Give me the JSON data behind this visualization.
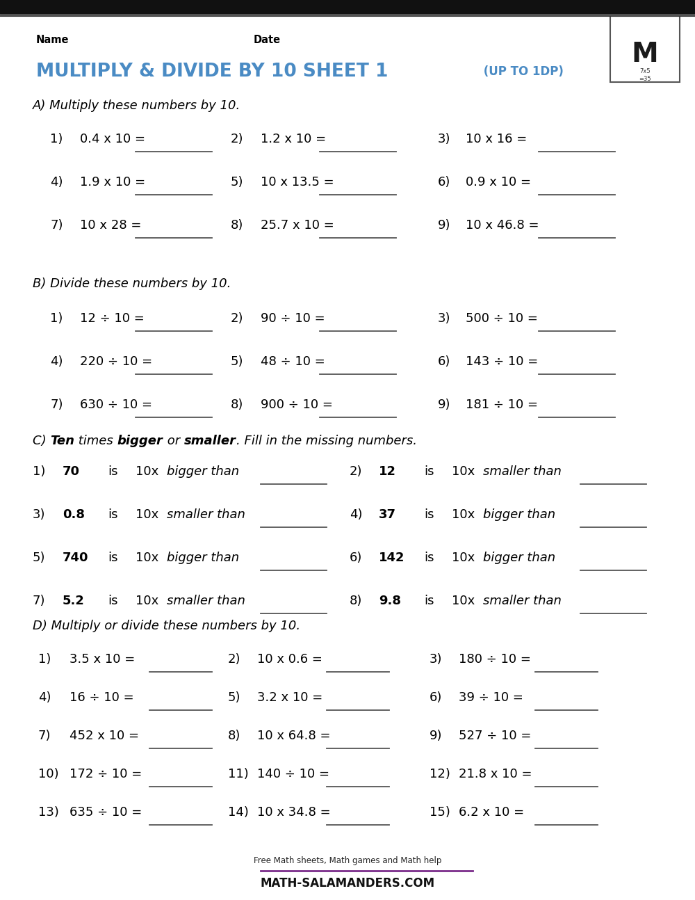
{
  "title_main": "MULTIPLY & DIVIDE BY 10 SHEET 1",
  "title_sub": " (UP TO 1DP)",
  "bg_color": "#ffffff",
  "text_color": "#000000",
  "title_color": "#4a8bc4",
  "section_A_title_parts": [
    "A) ",
    "Multiply these numbers by 10."
  ],
  "section_B_title_parts": [
    "B) ",
    "Divide these numbers by 10."
  ],
  "section_C_title_parts": [
    "C) ",
    "Ten",
    " times ",
    "bigger",
    " or ",
    "smaller",
    ". Fill in the missing numbers."
  ],
  "section_D_title_parts": [
    "D) ",
    "Multiply or divide these numbers by 10."
  ],
  "section_A_problems": [
    [
      "1)",
      "0.4 x 10 =",
      "2)",
      "1.2 x 10 =",
      "3)",
      "10 x 16 ="
    ],
    [
      "4)",
      "1.9 x 10 =",
      "5)",
      "10 x 13.5 =",
      "6)",
      "0.9 x 10 ="
    ],
    [
      "7)",
      "10 x 28 =",
      "8)",
      "25.7 x 10 =",
      "9)",
      "10 x 46.8 ="
    ]
  ],
  "section_B_problems": [
    [
      "1)",
      "12 ÷ 10 =",
      "2)",
      "90 ÷ 10 =",
      "3)",
      "500 ÷ 10 ="
    ],
    [
      "4)",
      "220 ÷ 10 =",
      "5)",
      "48 ÷ 10 =",
      "6)",
      "143 ÷ 10 ="
    ],
    [
      "7)",
      "630 ÷ 10 =",
      "8)",
      "900 ÷ 10 =",
      "9)",
      "181 ÷ 10 ="
    ]
  ],
  "section_C_problems": [
    [
      "1)",
      "70",
      "is",
      "10x",
      "bigger than",
      "2)",
      "12",
      "is",
      "10x",
      "smaller than"
    ],
    [
      "3)",
      "0.8",
      "is",
      "10x",
      "smaller than",
      "4)",
      "37",
      "is",
      "10x",
      "bigger than"
    ],
    [
      "5)",
      "740",
      "is",
      "10x",
      "bigger than",
      "6)",
      "142",
      "is",
      "10x",
      "bigger than"
    ],
    [
      "7)",
      "5.2",
      "is",
      "10x",
      "smaller than",
      "8)",
      "9.8",
      "is",
      "10x",
      "smaller than"
    ]
  ],
  "section_D_problems": [
    [
      "1)",
      "3.5 x 10 =",
      "2)",
      "10 x 0.6 =",
      "3)",
      "180 ÷ 10 ="
    ],
    [
      "4)",
      "16 ÷ 10 =",
      "5)",
      "3.2 x 10 =",
      "6)",
      "39 ÷ 10 ="
    ],
    [
      "7)",
      "452 x 10 =",
      "8)",
      "10 x 64.8 =",
      "9)",
      "527 ÷ 10 ="
    ],
    [
      "10)",
      "172 ÷ 10 =",
      "11)",
      "140 ÷ 10 =",
      "12)",
      "21.8 x 10 ="
    ],
    [
      "13)",
      "635 ÷ 10 =",
      "14)",
      "10 x 34.8 =",
      "15)",
      "6.2 x 10 ="
    ]
  ]
}
